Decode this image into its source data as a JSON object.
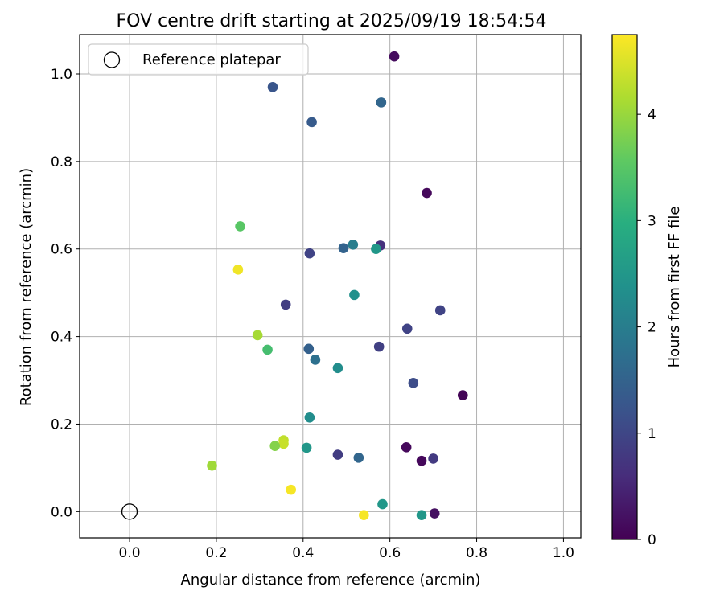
{
  "chart_data": {
    "type": "scatter",
    "title": "FOV centre drift starting at 2025/09/19 18:54:54",
    "xlabel": "Angular distance from reference (arcmin)",
    "ylabel": "Rotation from reference (arcmin)",
    "xlim": [
      -0.115,
      1.04
    ],
    "ylim": [
      -0.06,
      1.09
    ],
    "xticks": [
      "0.0",
      "0.2",
      "0.4",
      "0.6",
      "0.8",
      "1.0"
    ],
    "xtick_values": [
      0.0,
      0.2,
      0.4,
      0.6,
      0.8,
      1.0
    ],
    "yticks": [
      "0.0",
      "0.2",
      "0.4",
      "0.6",
      "0.8",
      "1.0"
    ],
    "ytick_values": [
      0.0,
      0.2,
      0.4,
      0.6,
      0.8,
      1.0
    ],
    "grid": true,
    "legend": {
      "label": "Reference platepar",
      "placement": "upper-left"
    },
    "reference_point": {
      "x": 0.0,
      "y": 0.0
    },
    "colorbar": {
      "label": "Hours from first FF file",
      "min": 0,
      "max": 4.75,
      "ticks": [
        "0",
        "1",
        "2",
        "3",
        "4"
      ],
      "tick_values": [
        0,
        1,
        2,
        3,
        4
      ],
      "colormap": "viridis"
    },
    "points": [
      {
        "x": 0.61,
        "y": 1.04,
        "hours": 0.15
      },
      {
        "x": 0.33,
        "y": 0.97,
        "hours": 1.25
      },
      {
        "x": 0.58,
        "y": 0.935,
        "hours": 1.55
      },
      {
        "x": 0.42,
        "y": 0.89,
        "hours": 1.35
      },
      {
        "x": 0.685,
        "y": 0.728,
        "hours": 0.1
      },
      {
        "x": 0.255,
        "y": 0.652,
        "hours": 3.5
      },
      {
        "x": 0.578,
        "y": 0.608,
        "hours": 0.65
      },
      {
        "x": 0.515,
        "y": 0.61,
        "hours": 2.0
      },
      {
        "x": 0.493,
        "y": 0.602,
        "hours": 1.5
      },
      {
        "x": 0.568,
        "y": 0.6,
        "hours": 2.5
      },
      {
        "x": 0.415,
        "y": 0.59,
        "hours": 0.95
      },
      {
        "x": 0.25,
        "y": 0.553,
        "hours": 4.65
      },
      {
        "x": 0.518,
        "y": 0.495,
        "hours": 2.35
      },
      {
        "x": 0.36,
        "y": 0.473,
        "hours": 0.85
      },
      {
        "x": 0.716,
        "y": 0.46,
        "hours": 0.95
      },
      {
        "x": 0.64,
        "y": 0.418,
        "hours": 0.95
      },
      {
        "x": 0.295,
        "y": 0.403,
        "hours": 4.1
      },
      {
        "x": 0.575,
        "y": 0.377,
        "hours": 0.9
      },
      {
        "x": 0.318,
        "y": 0.37,
        "hours": 3.3
      },
      {
        "x": 0.413,
        "y": 0.372,
        "hours": 1.45
      },
      {
        "x": 0.428,
        "y": 0.347,
        "hours": 1.75
      },
      {
        "x": 0.48,
        "y": 0.328,
        "hours": 2.3
      },
      {
        "x": 0.654,
        "y": 0.294,
        "hours": 1.1
      },
      {
        "x": 0.768,
        "y": 0.266,
        "hours": 0.05
      },
      {
        "x": 0.415,
        "y": 0.215,
        "hours": 2.3
      },
      {
        "x": 0.355,
        "y": 0.163,
        "hours": 4.3
      },
      {
        "x": 0.355,
        "y": 0.155,
        "hours": 4.35
      },
      {
        "x": 0.335,
        "y": 0.15,
        "hours": 3.85
      },
      {
        "x": 0.408,
        "y": 0.146,
        "hours": 2.5
      },
      {
        "x": 0.638,
        "y": 0.147,
        "hours": 0.1
      },
      {
        "x": 0.48,
        "y": 0.13,
        "hours": 0.85
      },
      {
        "x": 0.528,
        "y": 0.123,
        "hours": 1.55
      },
      {
        "x": 0.7,
        "y": 0.121,
        "hours": 0.8
      },
      {
        "x": 0.673,
        "y": 0.116,
        "hours": 0.1
      },
      {
        "x": 0.19,
        "y": 0.105,
        "hours": 4.05
      },
      {
        "x": 0.372,
        "y": 0.05,
        "hours": 4.7
      },
      {
        "x": 0.583,
        "y": 0.017,
        "hours": 2.5
      },
      {
        "x": 0.54,
        "y": -0.008,
        "hours": 4.7
      },
      {
        "x": 0.673,
        "y": -0.008,
        "hours": 2.5
      },
      {
        "x": 0.703,
        "y": -0.004,
        "hours": 0.2
      }
    ]
  }
}
